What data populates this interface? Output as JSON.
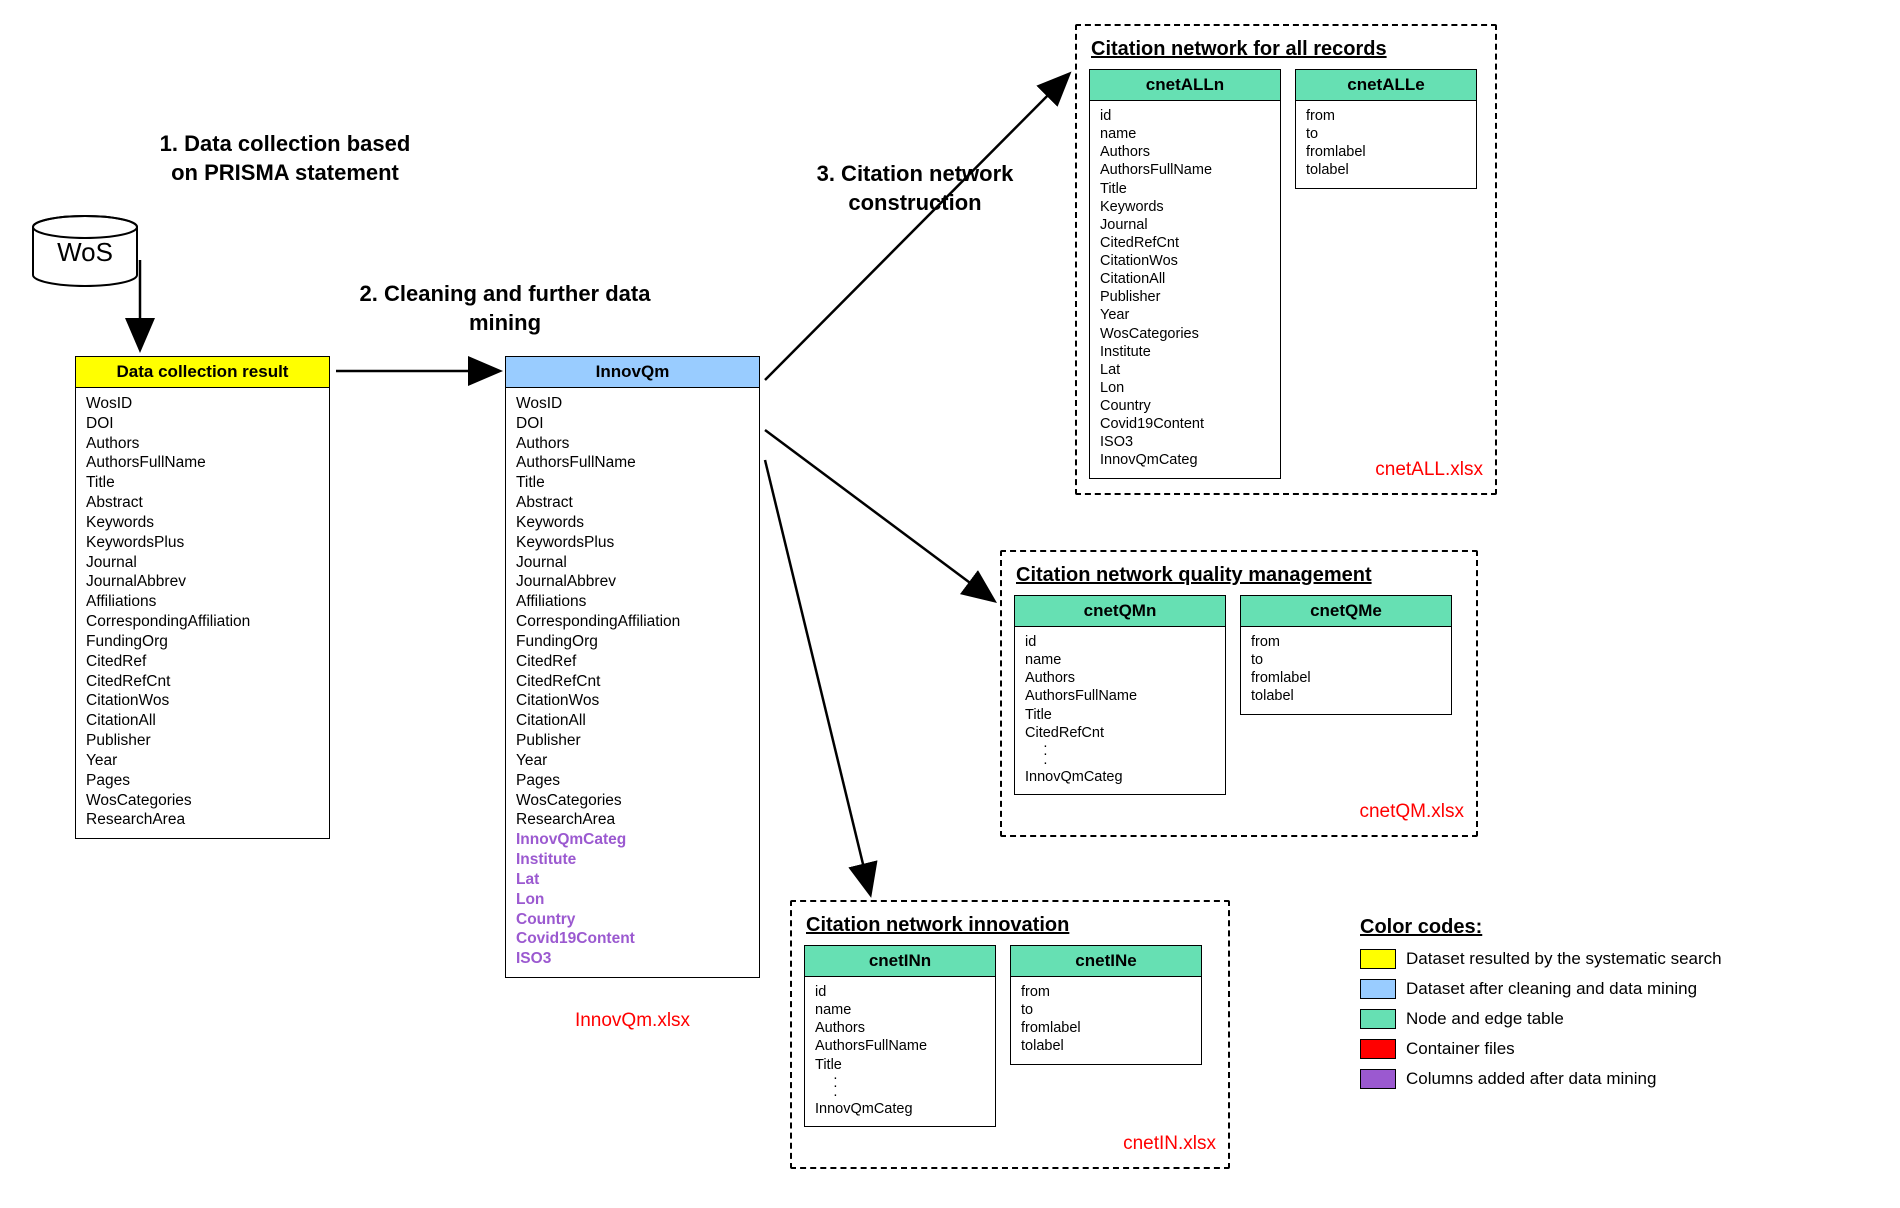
{
  "colors": {
    "yellow": "#ffff00",
    "blue": "#99ccff",
    "green": "#66e0b3",
    "red": "#ff0000",
    "purple": "#9b59d0",
    "black": "#000000",
    "white": "#ffffff"
  },
  "wos": {
    "label": "WoS"
  },
  "steps": {
    "s1": "1. Data collection based on PRISMA statement",
    "s2": "2. Cleaning and further data mining",
    "s3": "3. Citation network construction"
  },
  "tables": {
    "dataCollection": {
      "title": "Data collection result",
      "fields": [
        "WosID",
        "DOI",
        "Authors",
        "AuthorsFullName",
        "Title",
        "Abstract",
        "Keywords",
        "KeywordsPlus",
        "Journal",
        "JournalAbbrev",
        "Affiliations",
        "CorrespondingAffiliation",
        "FundingOrg",
        "CitedRef",
        "CitedRefCnt",
        "CitationWos",
        "CitationAll",
        "Publisher",
        "Year",
        "Pages",
        "WosCategories",
        "ResearchArea"
      ]
    },
    "innovQm": {
      "title": "InnovQm",
      "fields": [
        "WosID",
        "DOI",
        "Authors",
        "AuthorsFullName",
        "Title",
        "Abstract",
        "Keywords",
        "KeywordsPlus",
        "Journal",
        "JournalAbbrev",
        "Affiliations",
        "CorrespondingAffiliation",
        "FundingOrg",
        "CitedRef",
        "CitedRefCnt",
        "CitationWos",
        "CitationAll",
        "Publisher",
        "Year",
        "Pages",
        "WosCategories",
        "ResearchArea"
      ],
      "purpleFields": [
        "InnovQmCateg",
        "Institute",
        "Lat",
        "Lon",
        "Country",
        "Covid19Content",
        "ISO3"
      ],
      "file": "InnovQm.xlsx"
    }
  },
  "citationGroups": {
    "all": {
      "title": "Citation network for all records",
      "nodes": {
        "title": "cnetALLn",
        "fields": [
          "id",
          "name",
          "Authors",
          "AuthorsFullName",
          "Title",
          "Keywords",
          "Journal",
          "CitedRefCnt",
          "CitationWos",
          "CitationAll",
          "Publisher",
          "Year",
          "WosCategories",
          "Institute",
          "Lat",
          "Lon",
          "Country",
          "Covid19Content",
          "ISO3",
          "InnovQmCateg"
        ]
      },
      "edges": {
        "title": "cnetALLe",
        "fields": [
          "from",
          "to",
          "fromlabel",
          "tolabel"
        ]
      },
      "file": "cnetALL.xlsx"
    },
    "qm": {
      "title": "Citation network quality management",
      "nodes": {
        "title": "cnetQMn",
        "fields": [
          "id",
          "name",
          "Authors",
          "AuthorsFullName",
          "Title",
          "CitedRefCnt",
          "⋮",
          "InnovQmCateg"
        ]
      },
      "edges": {
        "title": "cnetQMe",
        "fields": [
          "from",
          "to",
          "fromlabel",
          "tolabel"
        ]
      },
      "file": "cnetQM.xlsx"
    },
    "in": {
      "title": "Citation network innovation",
      "nodes": {
        "title": "cnetINn",
        "fields": [
          "id",
          "name",
          "Authors",
          "AuthorsFullName",
          "Title",
          "⋮",
          "InnovQmCateg"
        ]
      },
      "edges": {
        "title": "cnetINe",
        "fields": [
          "from",
          "to",
          "fromlabel",
          "tolabel"
        ]
      },
      "file": "cnetIN.xlsx"
    }
  },
  "legend": {
    "title": "Color codes:",
    "items": [
      {
        "color": "#ffff00",
        "label": "Dataset resulted by the systematic search"
      },
      {
        "color": "#99ccff",
        "label": "Dataset after cleaning and data mining"
      },
      {
        "color": "#66e0b3",
        "label": "Node and edge table"
      },
      {
        "color": "#ff0000",
        "label": "Container files"
      },
      {
        "color": "#9b59d0",
        "label": "Columns added after data mining"
      }
    ]
  }
}
